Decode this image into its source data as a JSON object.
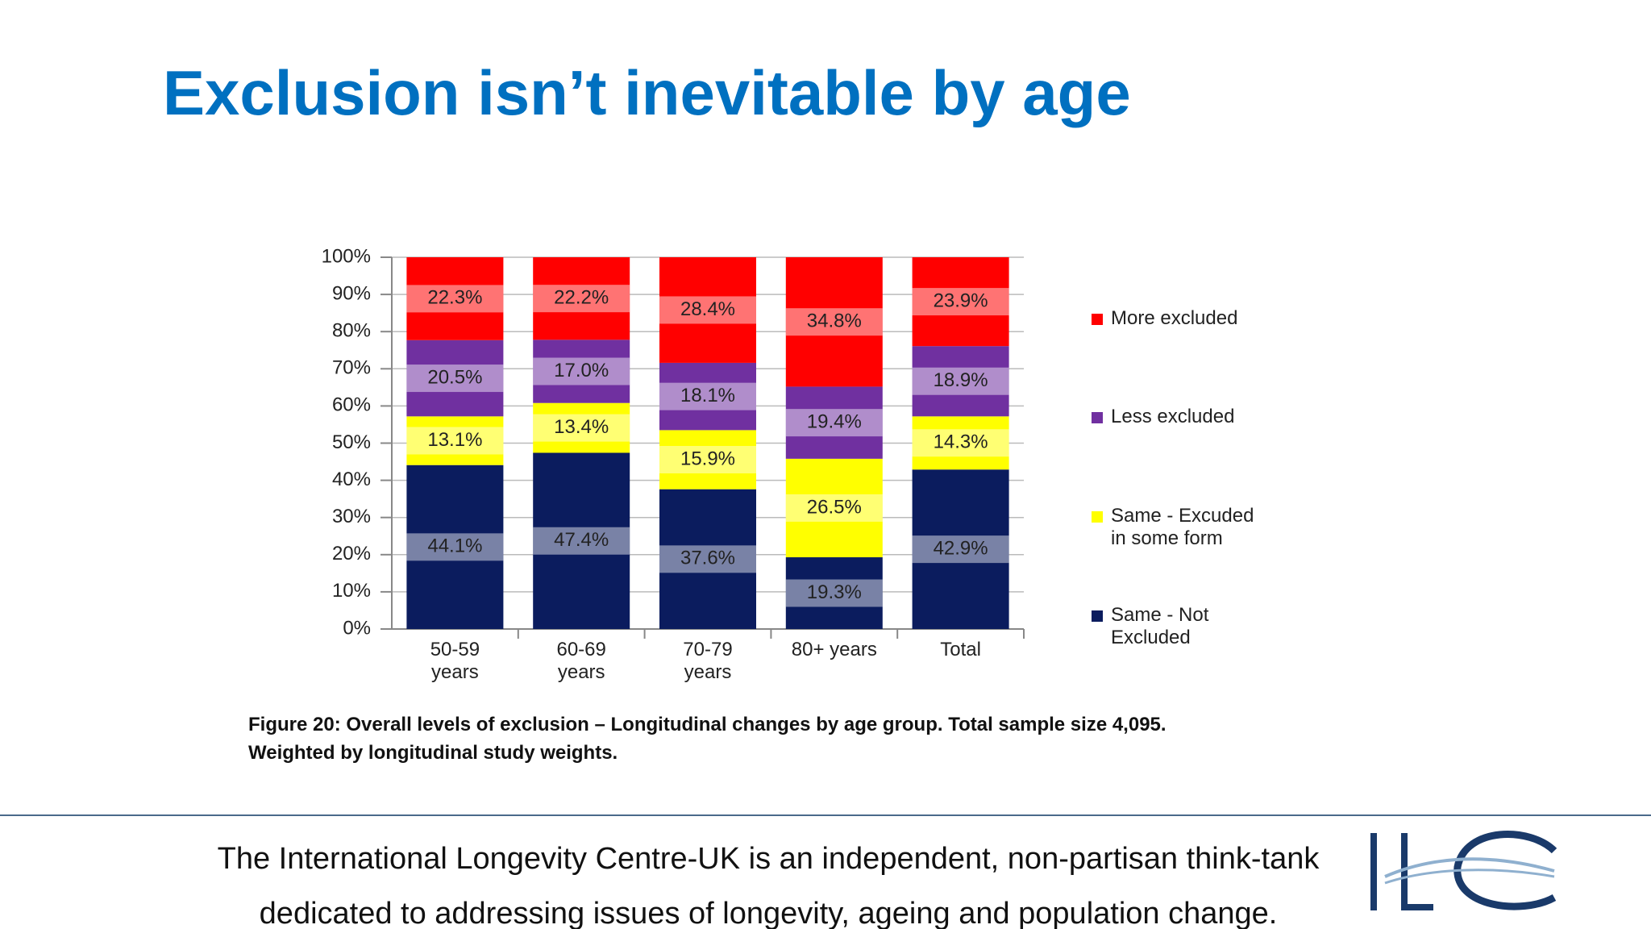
{
  "header": {
    "title": "Exclusion isn’t inevitable by age"
  },
  "chart_data": {
    "type": "stacked_bar",
    "categories": [
      "50-59\nyears",
      "60-69\nyears",
      "70-79\nyears",
      "80+ years",
      "Total"
    ],
    "series": [
      {
        "name": "Same - Not\nExcluded",
        "color": "#0b1c5e",
        "values": [
          44.1,
          47.4,
          37.6,
          19.3,
          42.9
        ],
        "value_labels": [
          "44.1%",
          "47.4%",
          "37.6%",
          "19.3%",
          "42.9%"
        ]
      },
      {
        "name": "Same - Excuded\nin some form",
        "color": "#ffff00",
        "values": [
          13.1,
          13.4,
          15.9,
          26.5,
          14.3
        ],
        "value_labels": [
          "13.1%",
          "13.4%",
          "15.9%",
          "26.5%",
          "14.3%"
        ]
      },
      {
        "name": "Less excluded",
        "color": "#7030a0",
        "values": [
          20.5,
          17.0,
          18.1,
          19.4,
          18.9
        ],
        "value_labels": [
          "20.5%",
          "17.0%",
          "18.1%",
          "19.4%",
          "18.9%"
        ]
      },
      {
        "name": "More excluded",
        "color": "#ff0000",
        "values": [
          22.3,
          22.2,
          28.4,
          34.8,
          23.9
        ],
        "value_labels": [
          "22.3%",
          "22.2%",
          "28.4%",
          "34.8%",
          "23.9%"
        ]
      }
    ],
    "ylim": [
      0,
      100
    ],
    "yticks": [
      {
        "value": 0,
        "label": "0%"
      },
      {
        "value": 10,
        "label": "10%"
      },
      {
        "value": 20,
        "label": "20%"
      },
      {
        "value": 30,
        "label": "30%"
      },
      {
        "value": 40,
        "label": "40%"
      },
      {
        "value": 50,
        "label": "50%"
      },
      {
        "value": 60,
        "label": "60%"
      },
      {
        "value": 70,
        "label": "70%"
      },
      {
        "value": 80,
        "label": "80%"
      },
      {
        "value": 90,
        "label": "90%"
      },
      {
        "value": 100,
        "label": "100%"
      }
    ],
    "legend": "right"
  },
  "caption": [
    "Figure 20: Overall levels of exclusion – Longitudinal changes by age group. Total sample size 4,095.",
    "Weighted by longitudinal study weights."
  ],
  "footer": {
    "lines": [
      "The International Longevity Centre-UK is an independent, non-partisan think-tank",
      "dedicated to addressing issues of longevity, ageing and population change."
    ]
  }
}
